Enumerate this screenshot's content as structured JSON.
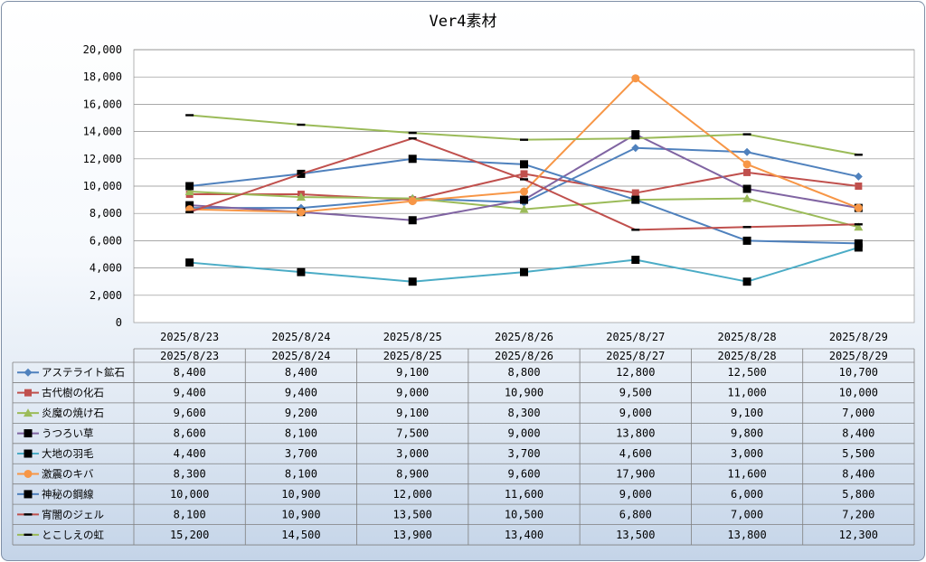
{
  "chart_data": {
    "type": "line",
    "title": "Ver4素材",
    "categories": [
      "2025/8/23",
      "2025/8/24",
      "2025/8/25",
      "2025/8/26",
      "2025/8/27",
      "2025/8/28",
      "2025/8/29"
    ],
    "ylim": [
      0,
      20000
    ],
    "yticks": [
      0,
      2000,
      4000,
      6000,
      8000,
      10000,
      12000,
      14000,
      16000,
      18000,
      20000
    ],
    "ytick_labels": [
      "0",
      "2,000",
      "4,000",
      "6,000",
      "8,000",
      "10,000",
      "12,000",
      "14,000",
      "16,000",
      "18,000",
      "20,000"
    ],
    "grid": true,
    "legend": "data-table-left",
    "series": [
      {
        "name": "アステライト鉱石",
        "color": "#4f81bd",
        "marker": "diamond",
        "values": [
          8400,
          8400,
          9100,
          8800,
          12800,
          12500,
          10700
        ],
        "labels": [
          "8,400",
          "8,400",
          "9,100",
          "8,800",
          "12,800",
          "12,500",
          "10,700"
        ]
      },
      {
        "name": "古代樹の化石",
        "color": "#c0504d",
        "marker": "square",
        "values": [
          9400,
          9400,
          9000,
          10900,
          9500,
          11000,
          10000
        ],
        "labels": [
          "9,400",
          "9,400",
          "9,000",
          "10,900",
          "9,500",
          "11,000",
          "10,000"
        ]
      },
      {
        "name": "炎魔の焼け石",
        "color": "#9bbb59",
        "marker": "triangle",
        "values": [
          9600,
          9200,
          9100,
          8300,
          9000,
          9100,
          7000
        ],
        "labels": [
          "9,600",
          "9,200",
          "9,100",
          "8,300",
          "9,000",
          "9,100",
          "7,000"
        ]
      },
      {
        "name": "うつろい草",
        "color": "#8064a2",
        "marker": "blacksquare",
        "values": [
          8600,
          8100,
          7500,
          9000,
          13800,
          9800,
          8400
        ],
        "labels": [
          "8,600",
          "8,100",
          "7,500",
          "9,000",
          "13,800",
          "9,800",
          "8,400"
        ]
      },
      {
        "name": "大地の羽毛",
        "color": "#4bacc6",
        "marker": "blacksquare",
        "values": [
          4400,
          3700,
          3000,
          3700,
          4600,
          3000,
          5500
        ],
        "labels": [
          "4,400",
          "3,700",
          "3,000",
          "3,700",
          "4,600",
          "3,000",
          "5,500"
        ]
      },
      {
        "name": "激震のキバ",
        "color": "#f79646",
        "marker": "circle",
        "values": [
          8300,
          8100,
          8900,
          9600,
          17900,
          11600,
          8400
        ],
        "labels": [
          "8,300",
          "8,100",
          "8,900",
          "9,600",
          "17,900",
          "11,600",
          "8,400"
        ]
      },
      {
        "name": "神秘の鋼線",
        "color": "#4f81bd",
        "marker": "blacksquare",
        "values": [
          10000,
          10900,
          12000,
          11600,
          9000,
          6000,
          5800
        ],
        "labels": [
          "10,000",
          "10,900",
          "12,000",
          "11,600",
          "9,000",
          "6,000",
          "5,800"
        ]
      },
      {
        "name": "宵闇のジェル",
        "color": "#c0504d",
        "marker": "dash",
        "values": [
          8100,
          10900,
          13500,
          10500,
          6800,
          7000,
          7200
        ],
        "labels": [
          "8,100",
          "10,900",
          "13,500",
          "10,500",
          "6,800",
          "7,000",
          "7,200"
        ]
      },
      {
        "name": "とこしえの虹",
        "color": "#9bbb59",
        "marker": "dash",
        "values": [
          15200,
          14500,
          13900,
          13400,
          13500,
          13800,
          12300
        ],
        "labels": [
          "15,200",
          "14,500",
          "13,900",
          "13,400",
          "13,500",
          "13,800",
          "12,300"
        ]
      }
    ]
  }
}
